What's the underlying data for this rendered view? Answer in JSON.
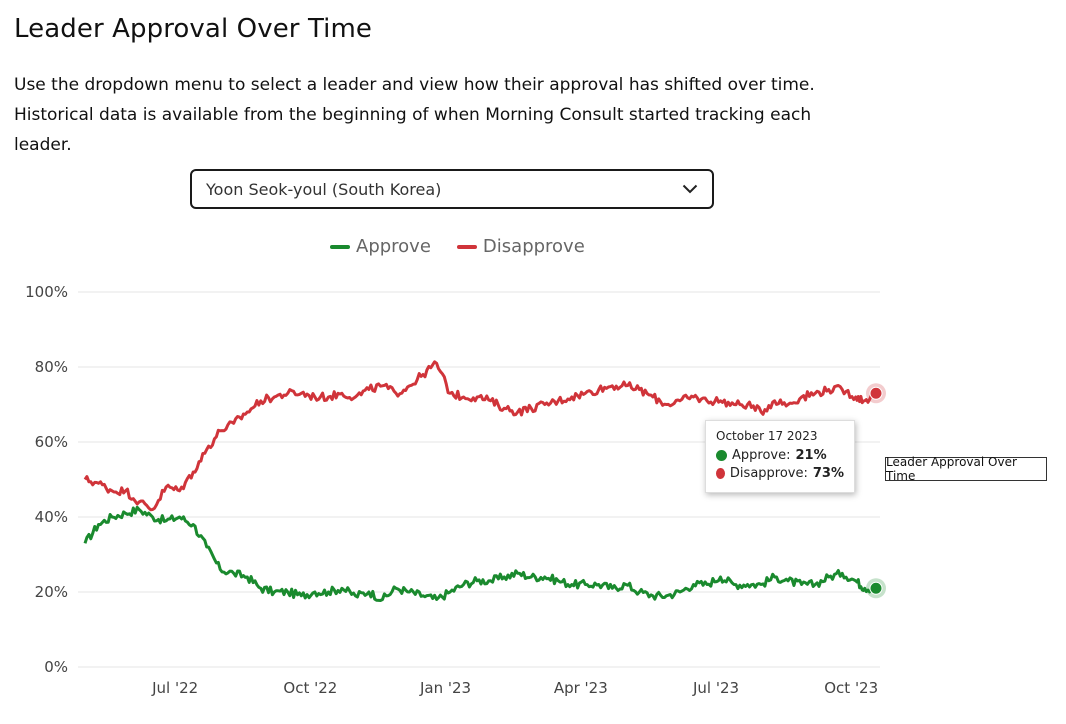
{
  "page": {
    "title": "Leader Approval Over Time",
    "intro": "Use the dropdown menu to select a leader and view how their approval has shifted over time. Historical data is available from the beginning of when Morning Consult started tracking each leader.",
    "dropdown_value": "Yoon Seok-youl (South Korea)",
    "side_label": "Leader Approval Over Time"
  },
  "tooltip": {
    "date": "October 17 2023",
    "approve_label": "Approve:",
    "approve_value": "21%",
    "disapprove_label": "Disapprove:",
    "disapprove_value": "73%"
  },
  "chart_data": {
    "type": "line",
    "title": "Leader Approval Over Time",
    "legend_position": "top",
    "grid": true,
    "ylim": [
      0,
      100
    ],
    "y_ticks": [
      "0%",
      "20%",
      "40%",
      "60%",
      "80%",
      "100%"
    ],
    "x_ticks": [
      "Jul '22",
      "Oct '22",
      "Jan '23",
      "Apr '23",
      "Jul '23",
      "Oct '23"
    ],
    "x_tick_months": [
      2,
      5,
      8,
      11,
      14,
      17
    ],
    "x_range_months": [
      0,
      17.55
    ],
    "series": [
      {
        "name": "Approve",
        "color": "#1a8a2e",
        "months": [
          0,
          0.3,
          0.6,
          0.9,
          1.2,
          1.5,
          1.8,
          2.1,
          2.4,
          2.7,
          3.0,
          3.3,
          3.6,
          3.9,
          4.2,
          4.5,
          4.8,
          5.1,
          5.4,
          5.7,
          6.0,
          6.3,
          6.6,
          6.9,
          7.2,
          7.5,
          7.8,
          8.1,
          8.4,
          8.7,
          9.0,
          9.3,
          9.6,
          9.9,
          10.2,
          10.5,
          10.8,
          11.1,
          11.4,
          11.7,
          12.0,
          12.3,
          12.6,
          12.9,
          13.2,
          13.5,
          13.8,
          14.1,
          14.4,
          14.7,
          15.0,
          15.3,
          15.6,
          15.9,
          16.2,
          16.5,
          16.8,
          17.1,
          17.3,
          17.55
        ],
        "values": [
          33,
          38,
          40,
          41,
          42,
          40,
          39,
          40,
          38,
          32,
          26,
          25,
          24,
          21,
          20,
          20,
          19,
          20,
          20,
          21,
          19,
          20,
          18,
          21,
          20,
          19,
          18,
          20,
          22,
          23,
          23,
          24,
          25,
          24,
          24,
          23,
          22,
          22,
          22,
          21,
          22,
          20,
          19,
          19,
          20,
          22,
          22,
          24,
          22,
          22,
          22,
          24,
          23,
          22,
          22,
          24,
          25,
          23,
          21,
          21
        ]
      },
      {
        "name": "Disapprove",
        "color": "#d0343a",
        "months": [
          0,
          0.3,
          0.6,
          0.9,
          1.2,
          1.5,
          1.8,
          2.1,
          2.4,
          2.7,
          3.0,
          3.3,
          3.6,
          3.9,
          4.2,
          4.5,
          4.8,
          5.1,
          5.4,
          5.7,
          6.0,
          6.3,
          6.6,
          6.9,
          7.2,
          7.5,
          7.8,
          8.1,
          8.4,
          8.7,
          9.0,
          9.3,
          9.6,
          9.9,
          10.2,
          10.5,
          10.8,
          11.1,
          11.4,
          11.7,
          12.0,
          12.3,
          12.6,
          12.9,
          13.2,
          13.5,
          13.8,
          14.1,
          14.4,
          14.7,
          15.0,
          15.3,
          15.6,
          15.9,
          16.2,
          16.5,
          16.8,
          17.1,
          17.3,
          17.55
        ],
        "values": [
          50,
          49,
          47,
          47,
          44,
          42,
          48,
          47,
          52,
          58,
          63,
          65,
          68,
          71,
          72,
          73,
          73,
          72,
          72,
          73,
          72,
          74,
          75,
          73,
          75,
          78,
          81,
          73,
          72,
          72,
          71,
          69,
          68,
          69,
          70,
          71,
          72,
          73,
          74,
          75,
          75,
          74,
          72,
          70,
          71,
          72,
          71,
          71,
          70,
          70,
          68,
          71,
          70,
          72,
          73,
          74,
          74,
          72,
          71,
          73
        ]
      }
    ]
  }
}
